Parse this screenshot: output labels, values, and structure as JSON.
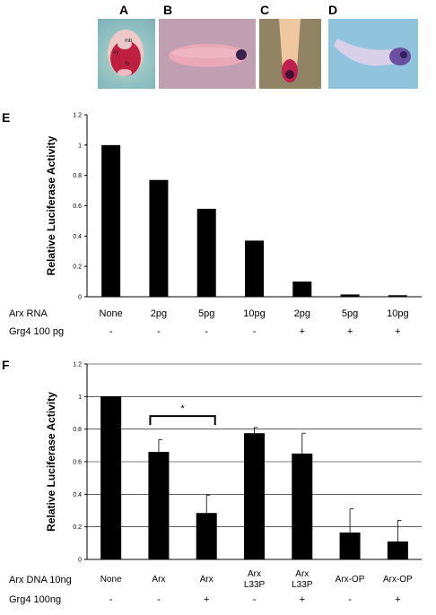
{
  "panels": {
    "a": {
      "letter": "A",
      "labels": {
        "mb": "mb",
        "ey": "ey",
        "fb": "fb"
      }
    },
    "b": {
      "letter": "B"
    },
    "c": {
      "letter": "C"
    },
    "d": {
      "letter": "D"
    },
    "e": {
      "letter": "E"
    },
    "f": {
      "letter": "F"
    }
  },
  "colors": {
    "bar": "#000000",
    "grid": "#000000",
    "photo_pink": "#d8a0a8",
    "photo_blue": "#8fb6c8"
  },
  "chart_data": [
    {
      "type": "bar",
      "panel": "E",
      "ylabel": "Relative Luciferase Activity",
      "ylim": [
        0,
        1.2
      ],
      "yticks": [
        "0",
        "0.2",
        "0.4",
        "0.6",
        "0.8",
        "1",
        "1.2"
      ],
      "grid": false,
      "values": [
        1.0,
        0.77,
        0.58,
        0.37,
        0.1,
        0.015,
        0.01
      ],
      "rows": [
        {
          "label": "Arx RNA",
          "cells": [
            "None",
            "2pg",
            "5pg",
            "10pg",
            "2pg",
            "5pg",
            "10pg"
          ]
        },
        {
          "label": "Grg4 100 pg",
          "cells": [
            "-",
            "-",
            "-",
            "-",
            "+",
            "+",
            "+"
          ]
        }
      ]
    },
    {
      "type": "bar",
      "panel": "F",
      "ylabel": "Relative Luciferase Activity",
      "ylim": [
        0,
        1.2
      ],
      "yticks": [
        "0",
        "0.2",
        "0.4",
        "0.6",
        "0.8",
        "1",
        "1.2"
      ],
      "grid": true,
      "values": [
        1.0,
        0.66,
        0.285,
        0.775,
        0.65,
        0.165,
        0.11
      ],
      "errors": [
        0,
        0.075,
        0.11,
        0.035,
        0.125,
        0.145,
        0.13
      ],
      "significance": {
        "from": 1,
        "to": 2,
        "label": "*",
        "y": 0.88
      },
      "rows": [
        {
          "label": "Arx DNA 10ng",
          "cells": [
            "None",
            "Arx",
            "Arx",
            "Arx\nL33P",
            "Arx\nL33P",
            "Arx-OP",
            "Arx-OP"
          ]
        },
        {
          "label": "Grg4 100ng",
          "cells": [
            "-",
            "-",
            "+",
            "-",
            "+",
            "-",
            "+"
          ]
        }
      ]
    }
  ]
}
